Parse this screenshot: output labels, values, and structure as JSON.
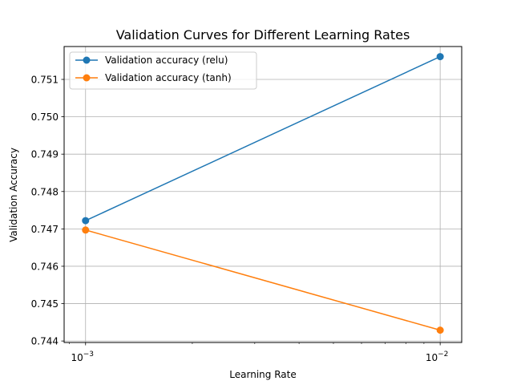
{
  "chart_data": {
    "type": "line",
    "title": "Validation Curves for Different Learning Rates",
    "xlabel": "Learning Rate",
    "ylabel": "Validation Accuracy",
    "xscale": "log",
    "x": [
      0.001,
      0.01
    ],
    "xlim": [
      0.00087,
      0.0115
    ],
    "ylim": [
      0.74396,
      0.75188
    ],
    "yticks": [
      0.744,
      0.745,
      0.746,
      0.747,
      0.748,
      0.749,
      0.75,
      0.751
    ],
    "ytick_labels": [
      "0.744",
      "0.745",
      "0.746",
      "0.747",
      "0.748",
      "0.749",
      "0.750",
      "0.751"
    ],
    "xticks": [
      {
        "value": 0.001,
        "base": "10",
        "exp": "−3"
      },
      {
        "value": 0.01,
        "base": "10",
        "exp": "−2"
      }
    ],
    "grid": true,
    "legend_position": "top-left",
    "series": [
      {
        "name": "Validation accuracy (relu)",
        "values": [
          0.74722,
          0.75161
        ],
        "color": "#1f77b4"
      },
      {
        "name": "Validation accuracy (tanh)",
        "values": [
          0.74697,
          0.74429
        ],
        "color": "#ff7f0e"
      }
    ]
  }
}
